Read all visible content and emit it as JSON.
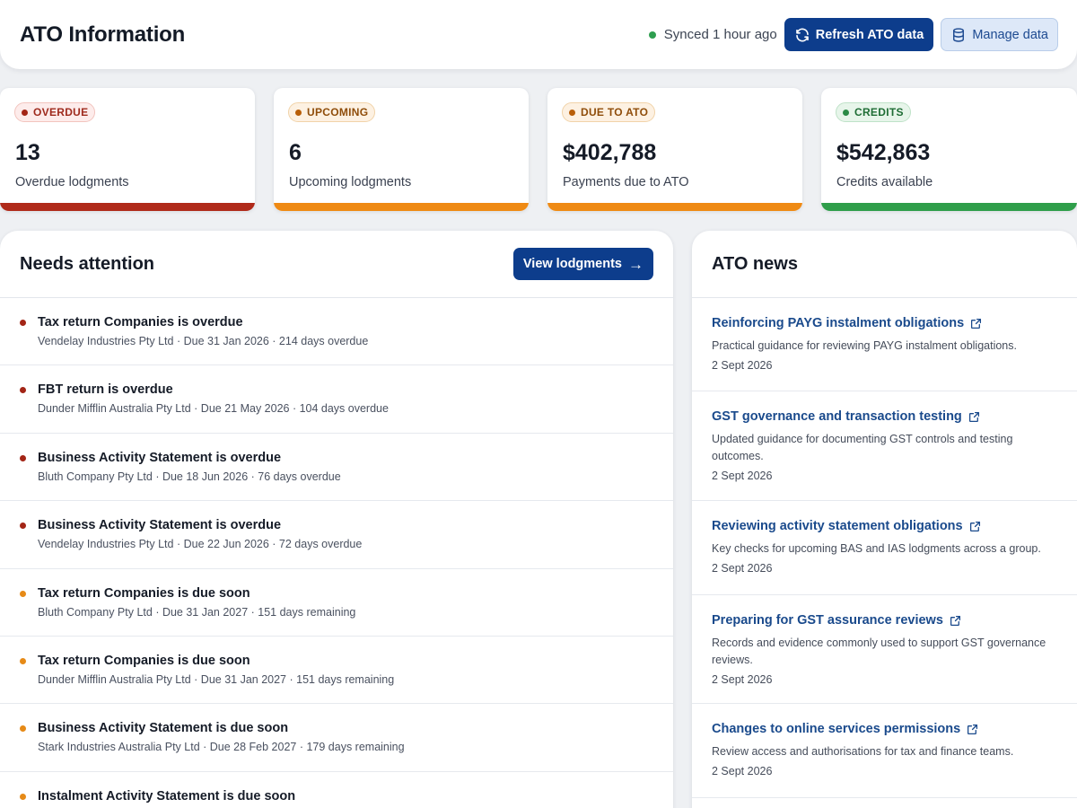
{
  "header": {
    "title": "ATO Information",
    "sync_status": "Synced 1 hour ago",
    "refresh_label": "Refresh ATO data",
    "manage_label": "Manage data"
  },
  "stats": [
    {
      "badge": "OVERDUE",
      "value": "13",
      "label": "Overdue lodgments",
      "color": "#b02a1a"
    },
    {
      "badge": "UPCOMING",
      "value": "6",
      "label": "Upcoming lodgments",
      "color": "#ef8a14"
    },
    {
      "badge": "DUE TO ATO",
      "value": "$402,788",
      "label": "Payments due to ATO",
      "color": "#ef8a14"
    },
    {
      "badge": "CREDITS",
      "value": "$542,863",
      "label": "Credits available",
      "color": "#2f9e4a"
    }
  ],
  "attention": {
    "title": "Needs attention",
    "button_label": "View lodgments",
    "items": [
      {
        "title": "Tax return Companies is overdue",
        "sub": "Vendelay Industries Pty Ltd · Due 31 Jan 2026 · 214 days overdue",
        "status": "overdue"
      },
      {
        "title": "FBT return is overdue",
        "sub": "Dunder Mifflin Australia Pty Ltd · Due 21 May 2026 · 104 days overdue",
        "status": "overdue"
      },
      {
        "title": "Business Activity Statement is overdue",
        "sub": "Bluth Company Pty Ltd · Due 18 Jun 2026 · 76 days overdue",
        "status": "overdue"
      },
      {
        "title": "Business Activity Statement is overdue",
        "sub": "Vendelay Industries Pty Ltd · Due 22 Jun 2026 · 72 days overdue",
        "status": "overdue"
      },
      {
        "title": "Tax return Companies is due soon",
        "sub": "Bluth Company Pty Ltd · Due 31 Jan 2027 · 151 days remaining",
        "status": "upcoming"
      },
      {
        "title": "Tax return Companies is due soon",
        "sub": "Dunder Mifflin Australia Pty Ltd · Due 31 Jan 2027 · 151 days remaining",
        "status": "upcoming"
      },
      {
        "title": "Business Activity Statement is due soon",
        "sub": "Stark Industries Australia Pty Ltd · Due 28 Feb 2027 · 179 days remaining",
        "status": "upcoming"
      },
      {
        "title": "Instalment Activity Statement is due soon",
        "sub": "",
        "status": "upcoming"
      }
    ]
  },
  "news": {
    "title": "ATO news",
    "items": [
      {
        "title": "Reinforcing PAYG instalment obligations",
        "desc": "Practical guidance for reviewing PAYG instalment obligations.",
        "date": "2 Sept 2026"
      },
      {
        "title": "GST governance and transaction testing",
        "desc": "Updated guidance for documenting GST controls and testing outcomes.",
        "date": "2 Sept 2026"
      },
      {
        "title": "Reviewing activity statement obligations",
        "desc": "Key checks for upcoming BAS and IAS lodgments across a group.",
        "date": "2 Sept 2026"
      },
      {
        "title": "Preparing for GST assurance reviews",
        "desc": "Records and evidence commonly used to support GST governance reviews.",
        "date": "2 Sept 2026"
      },
      {
        "title": "Changes to online services permissions",
        "desc": "Review access and authorisations for tax and finance teams.",
        "date": "2 Sept 2026"
      }
    ]
  }
}
